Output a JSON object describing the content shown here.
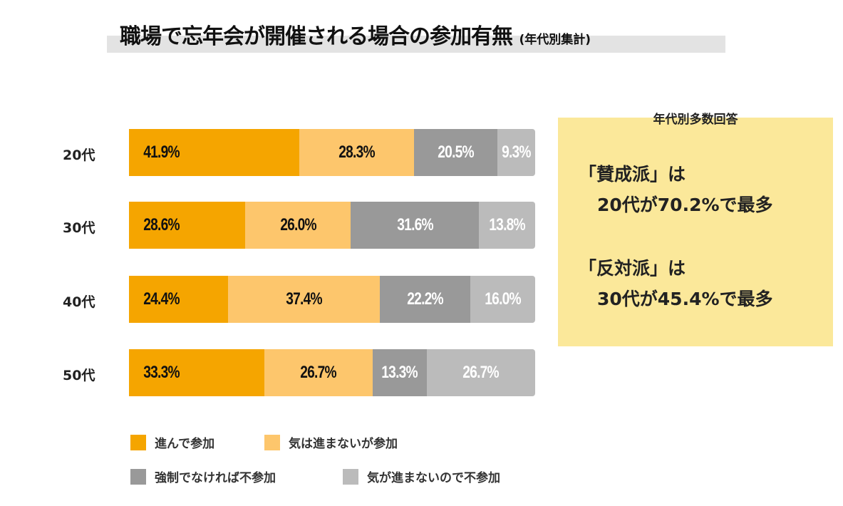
{
  "title": "職場で忘年会が開催される場合の参加有無",
  "subtitle": "(年代別集計)",
  "chart_data": {
    "type": "bar",
    "orientation": "horizontal-stacked-100",
    "title": "職場で忘年会が開催される場合の参加有無 (年代別集計)",
    "categories": [
      "20代",
      "30代",
      "40代",
      "50代"
    ],
    "series": [
      {
        "name": "進んで参加",
        "color": "#f5a500",
        "values": [
          41.9,
          28.6,
          24.4,
          33.3
        ],
        "labels": [
          "41.9%",
          "28.6%",
          "24.4%",
          "33.3%"
        ]
      },
      {
        "name": "気は進まないが参加",
        "color": "#fdc66c",
        "values": [
          28.3,
          26.0,
          37.4,
          26.7
        ],
        "labels": [
          "28.3%",
          "26.0%",
          "37.4%",
          "26.7%"
        ]
      },
      {
        "name": "強制でなければ不参加",
        "color": "#999999",
        "values": [
          20.5,
          31.6,
          22.2,
          13.3
        ],
        "labels": [
          "20.5%",
          "31.6%",
          "22.2%",
          "13.3%"
        ]
      },
      {
        "name": "気が進まないので不参加",
        "color": "#bbbbbb",
        "values": [
          9.3,
          13.8,
          16.0,
          26.7
        ],
        "labels": [
          "9.3%",
          "13.8%",
          "16.0%",
          "26.7%"
        ]
      }
    ],
    "legend": "bottom"
  },
  "panel": {
    "title": "年代別多数回答",
    "line1": "「賛成派」は",
    "line2": "20代が70.2%で最多",
    "line3": "「反対派」は",
    "line4": "30代が45.4%で最多"
  }
}
